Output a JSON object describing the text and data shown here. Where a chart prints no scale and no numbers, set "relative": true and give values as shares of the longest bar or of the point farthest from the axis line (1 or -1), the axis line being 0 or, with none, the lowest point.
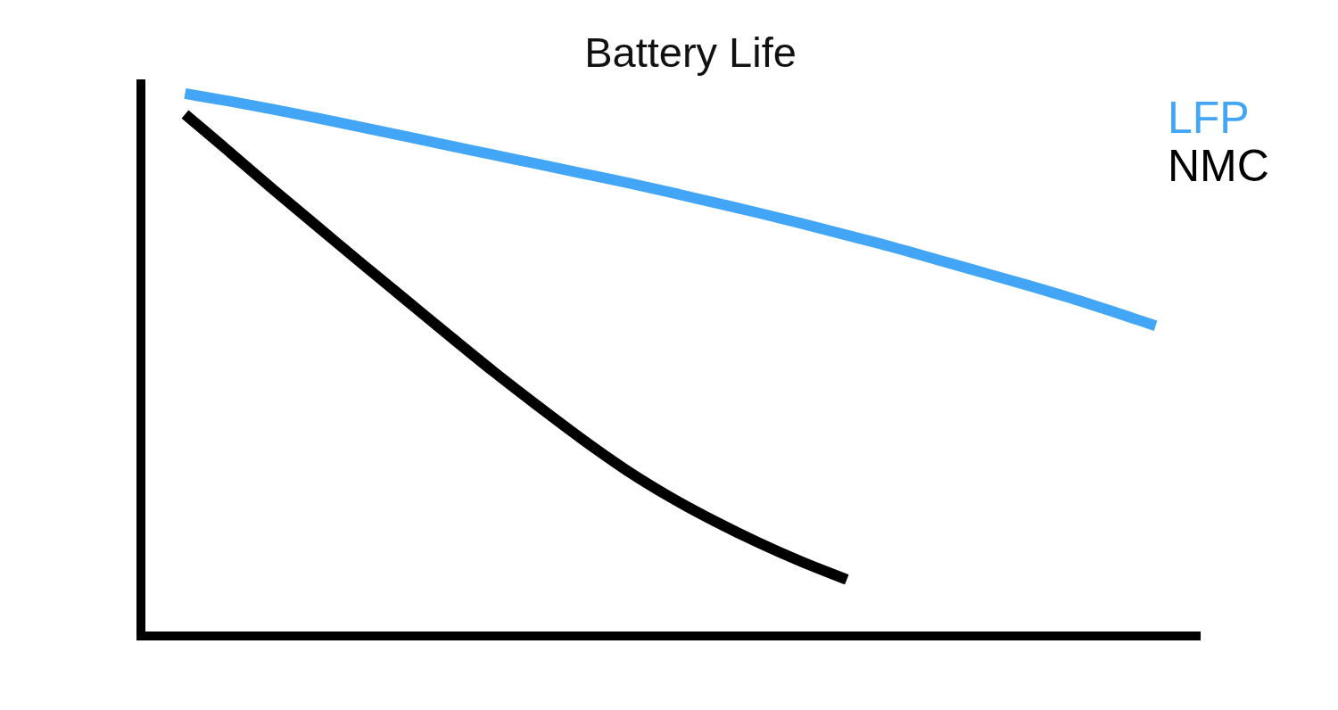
{
  "chart_data": {
    "type": "line",
    "title": "Battery Life",
    "relative": true,
    "legend": "top right",
    "categories": [
      null,
      null,
      null,
      null,
      null,
      null,
      null,
      null,
      null,
      null,
      null,
      null,
      null,
      null,
      null,
      null,
      null,
      null,
      null,
      null,
      null,
      null,
      null,
      null,
      null
    ],
    "series": [
      {
        "name": "LFP",
        "color": "#42a5f5",
        "values": [
          null,
          1.0,
          0.986,
          0.971,
          0.955,
          0.938,
          0.921,
          0.904,
          0.887,
          0.87,
          0.853,
          0.836,
          0.818,
          0.799,
          0.78,
          0.76,
          0.739,
          0.718,
          0.695,
          0.672,
          0.649,
          0.625,
          0.599,
          0.572,
          null
        ]
      },
      {
        "name": "NMC",
        "color": "#000000",
        "values": [
          null,
          0.962,
          0.893,
          0.823,
          0.755,
          0.687,
          0.62,
          0.553,
          0.487,
          0.424,
          0.363,
          0.306,
          0.256,
          0.212,
          0.172,
          0.136,
          0.104,
          null,
          null,
          null,
          null,
          null,
          null,
          null,
          null
        ]
      }
    ]
  }
}
